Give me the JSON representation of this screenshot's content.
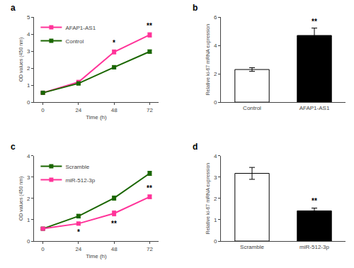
{
  "chart_data": [
    {
      "type": "line",
      "title": "a",
      "x": [
        0,
        24,
        48,
        72
      ],
      "xlabel": "Time (h)",
      "ylabel": "OD values (450 nm)",
      "xlim": [
        -6,
        78
      ],
      "xticks": [
        0,
        24,
        48,
        72
      ],
      "ylim": [
        0,
        5
      ],
      "yticks": [
        0,
        1,
        2,
        3,
        4,
        5
      ],
      "marker": "square",
      "grid": false,
      "legend": "upper left",
      "series": [
        {
          "name": "AFAP1-AS1",
          "color": "#FF3399",
          "values": [
            0.55,
            1.18,
            2.95,
            3.95
          ],
          "errors": [
            0.04,
            0.1,
            0.12,
            0.13
          ]
        },
        {
          "name": "Control",
          "color": "#1A6600",
          "values": [
            0.55,
            1.1,
            2.05,
            2.97
          ],
          "errors": [
            0.04,
            0.09,
            0.1,
            0.1
          ]
        }
      ],
      "annotations": [
        {
          "text": "*",
          "x": 48,
          "series": "AFAP1-AS1",
          "position": "above"
        },
        {
          "text": "**",
          "x": 72,
          "series": "AFAP1-AS1",
          "position": "above"
        }
      ]
    },
    {
      "type": "bar",
      "title": "b",
      "categories": [
        "Control",
        "AFAP1-AS1"
      ],
      "values": [
        2.3,
        4.7
      ],
      "errors": [
        0.13,
        0.52
      ],
      "colors": [
        "white",
        "black"
      ],
      "ylabel": "Relative ki-67 mRNA expression",
      "ylim": [
        0,
        6
      ],
      "yticks": [
        0,
        2,
        4,
        6
      ],
      "grid": false,
      "annotations": [
        {
          "text": "**",
          "x": "AFAP1-AS1",
          "position": "above"
        }
      ]
    },
    {
      "type": "line",
      "title": "c",
      "x": [
        0,
        24,
        48,
        72
      ],
      "xlabel": "Time (h)",
      "ylabel": "OD values (450 nm)",
      "xlim": [
        -6,
        78
      ],
      "xticks": [
        0,
        24,
        48,
        72
      ],
      "ylim": [
        0,
        4
      ],
      "yticks": [
        0,
        1,
        2,
        3,
        4
      ],
      "marker": "square",
      "grid": false,
      "legend": "upper left",
      "series": [
        {
          "name": "Scramble",
          "color": "#1A6600",
          "values": [
            0.58,
            1.17,
            2.02,
            3.18
          ],
          "errors": [
            0.04,
            0.09,
            0.1,
            0.1
          ]
        },
        {
          "name": "miR-512-3p",
          "color": "#FF3399",
          "values": [
            0.58,
            0.82,
            1.3,
            2.08
          ],
          "errors": [
            0.04,
            0.07,
            0.12,
            0.09
          ]
        }
      ],
      "annotations": [
        {
          "text": "*",
          "x": 24,
          "series": "miR-512-3p",
          "position": "below"
        },
        {
          "text": "**",
          "x": 48,
          "series": "miR-512-3p",
          "position": "below"
        },
        {
          "text": "**",
          "x": 72,
          "series": "miR-512-3p",
          "position": "above"
        }
      ]
    },
    {
      "type": "bar",
      "title": "d",
      "categories": [
        "Scramble",
        "miR-512-3p"
      ],
      "values": [
        3.18,
        1.42
      ],
      "errors": [
        0.28,
        0.13
      ],
      "colors": [
        "white",
        "black"
      ],
      "ylabel": "Relative ki-67 mRNA expression",
      "ylim": [
        0,
        4
      ],
      "yticks": [
        0,
        1,
        2,
        3,
        4
      ],
      "grid": false,
      "annotations": [
        {
          "text": "**",
          "x": "miR-512-3p",
          "position": "above"
        }
      ]
    }
  ]
}
